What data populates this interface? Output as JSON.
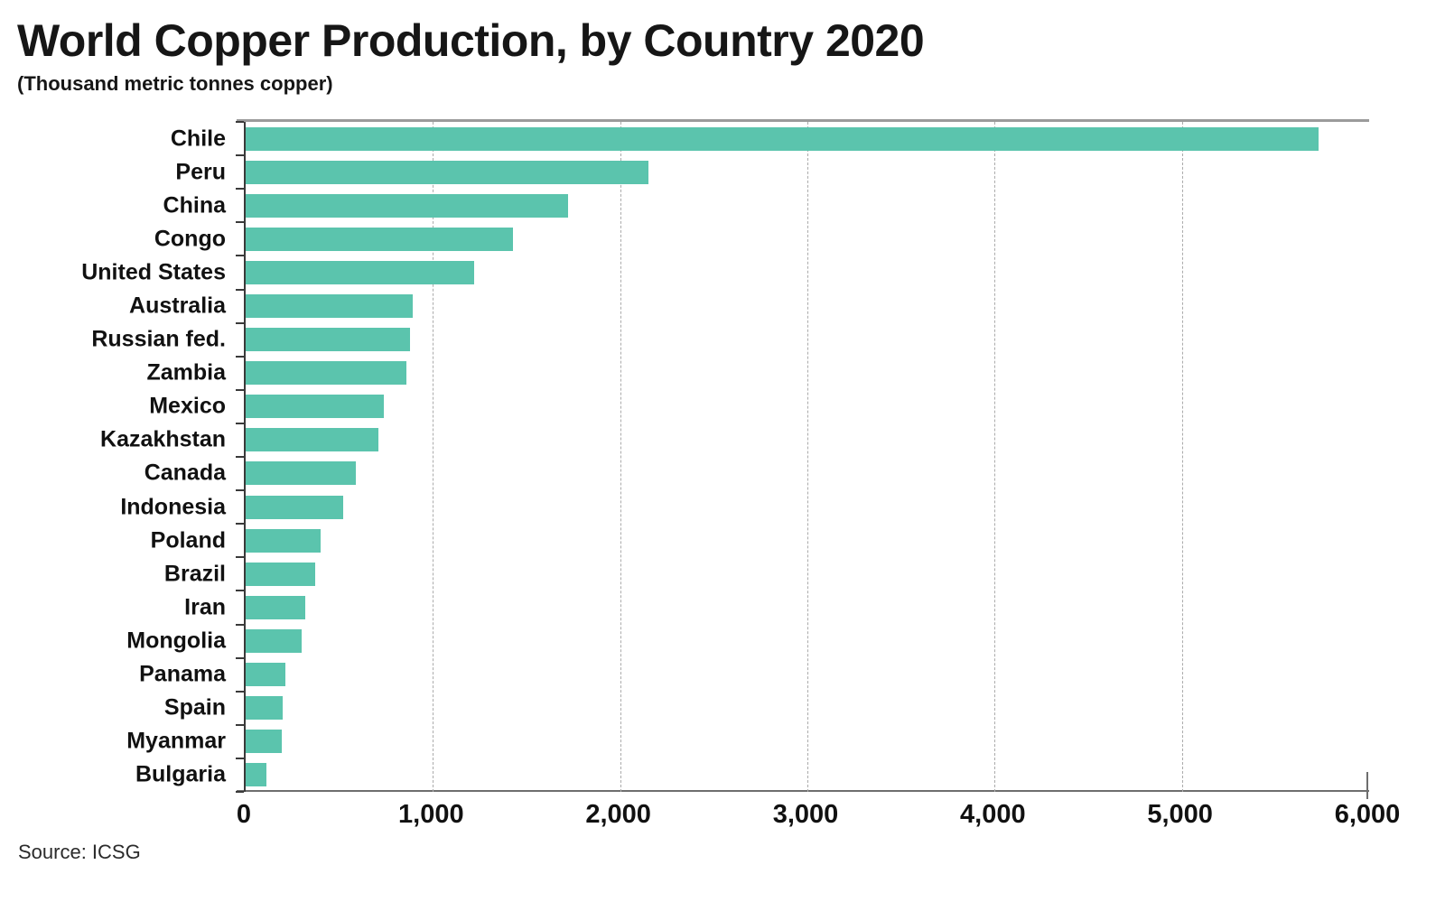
{
  "page": {
    "background": "#ffffff"
  },
  "header": {
    "title": "World Copper Production, by Country 2020",
    "subtitle": "(Thousand metric tonnes copper)"
  },
  "footer": {
    "source": "Source: ICSG"
  },
  "colors": {
    "bar": "#5bc4ad",
    "top_axis_line": "#9b9b9b",
    "bottom_axis_line": "#6e6e6e",
    "left_axis_line": "#3a3a3a",
    "gridline": "#ababab",
    "text": "#111111"
  },
  "chart_data": {
    "type": "bar",
    "orientation": "horizontal",
    "title": "World Copper Production, by Country 2020",
    "subtitle": "(Thousand metric tonnes copper)",
    "source": "Source: ICSG",
    "unit": "thousand metric tonnes copper",
    "categories": [
      "Chile",
      "Peru",
      "China",
      "Congo",
      "United States",
      "Australia",
      "Russian fed.",
      "Zambia",
      "Mexico",
      "Kazakhstan",
      "Canada",
      "Indonesia",
      "Poland",
      "Brazil",
      "Iran",
      "Mongolia",
      "Panama",
      "Spain",
      "Myanmar",
      "Bulgaria"
    ],
    "values": [
      5730,
      2150,
      1720,
      1430,
      1220,
      890,
      880,
      860,
      740,
      710,
      590,
      520,
      400,
      370,
      320,
      300,
      210,
      200,
      195,
      110
    ],
    "xlim": [
      0,
      6000
    ],
    "x_tick_interval": 1000,
    "x_tick_labels": [
      "0",
      "1,000",
      "2,000",
      "3,000",
      "4,000",
      "5,000",
      "6,000"
    ],
    "grid": "vertical-dashed",
    "legend": "none",
    "bar_color": "#5bc4ad"
  }
}
